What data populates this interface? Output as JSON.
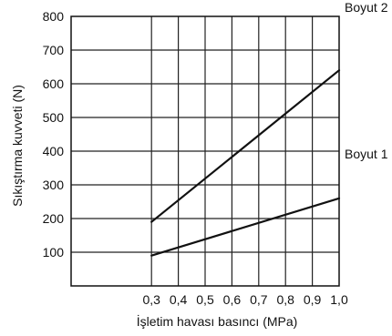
{
  "chart_data": {
    "type": "line",
    "xlabel": "İşletim havası basıncı (MPa)",
    "ylabel": "Sıkıştırma kuvveti (N)",
    "xlim": [
      0.0,
      1.0
    ],
    "ylim": [
      0,
      800
    ],
    "x_ticks": [
      0.3,
      0.4,
      0.5,
      0.6,
      0.7,
      0.8,
      0.9,
      1.0
    ],
    "x_tick_labels": [
      "0,3",
      "0,4",
      "0,5",
      "0,6",
      "0,7",
      "0,8",
      "0,9",
      "1,0"
    ],
    "y_ticks": [
      100,
      200,
      300,
      400,
      500,
      600,
      700,
      800
    ],
    "y_tick_labels": [
      "100",
      "200",
      "300",
      "400",
      "500",
      "600",
      "700",
      "800"
    ],
    "grid": true,
    "series": [
      {
        "name": "Boyut 2",
        "x": [
          0.3,
          1.0
        ],
        "y": [
          190,
          640
        ],
        "color": "#111111"
      },
      {
        "name": "Boyut 1",
        "x": [
          0.3,
          1.0
        ],
        "y": [
          90,
          260
        ],
        "color": "#111111"
      }
    ]
  }
}
